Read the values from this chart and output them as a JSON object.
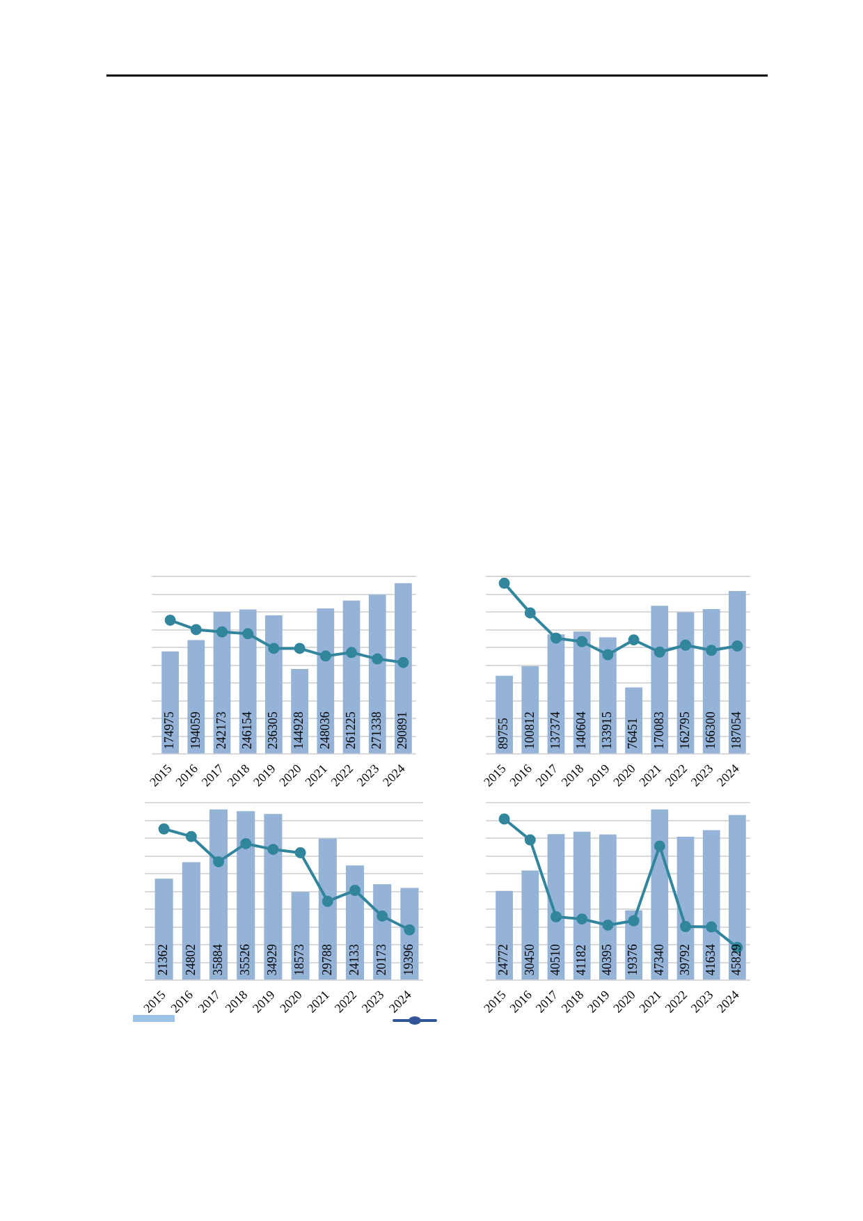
{
  "chart_data": [
    {
      "type": "bar",
      "categories": [
        "2015",
        "2016",
        "2017",
        "2018",
        "2019",
        "2020",
        "2021",
        "2022",
        "2023",
        "2024"
      ],
      "grid": "y",
      "tick_labels": "x",
      "marker": "circle",
      "line_style": "solid",
      "series": [
        {
          "type": "bar",
          "color": "#95b3d7",
          "values": [
            174975,
            194059,
            242173,
            246154,
            236305,
            144928,
            248036,
            261225,
            271338,
            290891
          ],
          "value_labels": [
            "174975",
            "194059",
            "242173",
            "246154",
            "236305",
            "144928",
            "248036",
            "261225",
            "271338",
            "290891"
          ]
        },
        {
          "type": "line",
          "color": "#31859c",
          "values": [
            228000,
            212000,
            208000,
            205000,
            180000,
            180000,
            167000,
            173000,
            162000,
            156000
          ]
        }
      ]
    },
    {
      "type": "bar",
      "categories": [
        "2015",
        "2016",
        "2017",
        "2018",
        "2019",
        "2020",
        "2021",
        "2022",
        "2023",
        "2024"
      ],
      "grid": "y",
      "tick_labels": "x",
      "marker": "circle",
      "line_style": "solid",
      "series": [
        {
          "type": "bar",
          "color": "#95b3d7",
          "values": [
            89755,
            100812,
            137374,
            140604,
            133915,
            76451,
            170083,
            162795,
            166300,
            187054
          ],
          "value_labels": [
            "89755",
            "100812",
            "137374",
            "140604",
            "133915",
            "76451",
            "170083",
            "162795",
            "166300",
            "187054"
          ]
        },
        {
          "type": "line",
          "color": "#31859c",
          "values": [
            196000,
            162000,
            133000,
            129000,
            114000,
            131000,
            117000,
            125000,
            119000,
            124000
          ]
        }
      ]
    },
    {
      "type": "bar",
      "categories": [
        "2015",
        "2016",
        "2017",
        "2018",
        "2019",
        "2020",
        "2021",
        "2022",
        "2023",
        "2024"
      ],
      "grid": "y",
      "tick_labels": "x",
      "marker": "circle",
      "line_style": "solid",
      "series": [
        {
          "type": "bar",
          "color": "#95b3d7",
          "values": [
            21362,
            24802,
            35884,
            35526,
            34929,
            18573,
            29788,
            24133,
            20173,
            19396
          ],
          "value_labels": [
            "21362",
            "24802",
            "35884",
            "35526",
            "34929",
            "18573",
            "29788",
            "24133",
            "20173",
            "19396"
          ]
        },
        {
          "type": "line",
          "color": "#31859c",
          "values": [
            31800,
            30200,
            24900,
            28700,
            27500,
            26800,
            16600,
            18900,
            13500,
            10600
          ]
        }
      ]
    },
    {
      "type": "bar",
      "categories": [
        "2015",
        "2016",
        "2017",
        "2018",
        "2019",
        "2020",
        "2021",
        "2022",
        "2023",
        "2024"
      ],
      "grid": "y",
      "tick_labels": "x",
      "marker": "circle",
      "line_style": "solid",
      "series": [
        {
          "type": "bar",
          "color": "#95b3d7",
          "values": [
            24772,
            30450,
            40510,
            41182,
            40395,
            19376,
            47340,
            39792,
            41634,
            45829
          ],
          "value_labels": [
            "24772",
            "30450",
            "40510",
            "41182",
            "40395",
            "19376",
            "47340",
            "39792",
            "41634",
            "45829"
          ]
        },
        {
          "type": "line",
          "color": "#31859c",
          "values": [
            44700,
            38900,
            17600,
            17000,
            15300,
            16500,
            37200,
            14900,
            14800,
            9100
          ]
        }
      ]
    }
  ]
}
